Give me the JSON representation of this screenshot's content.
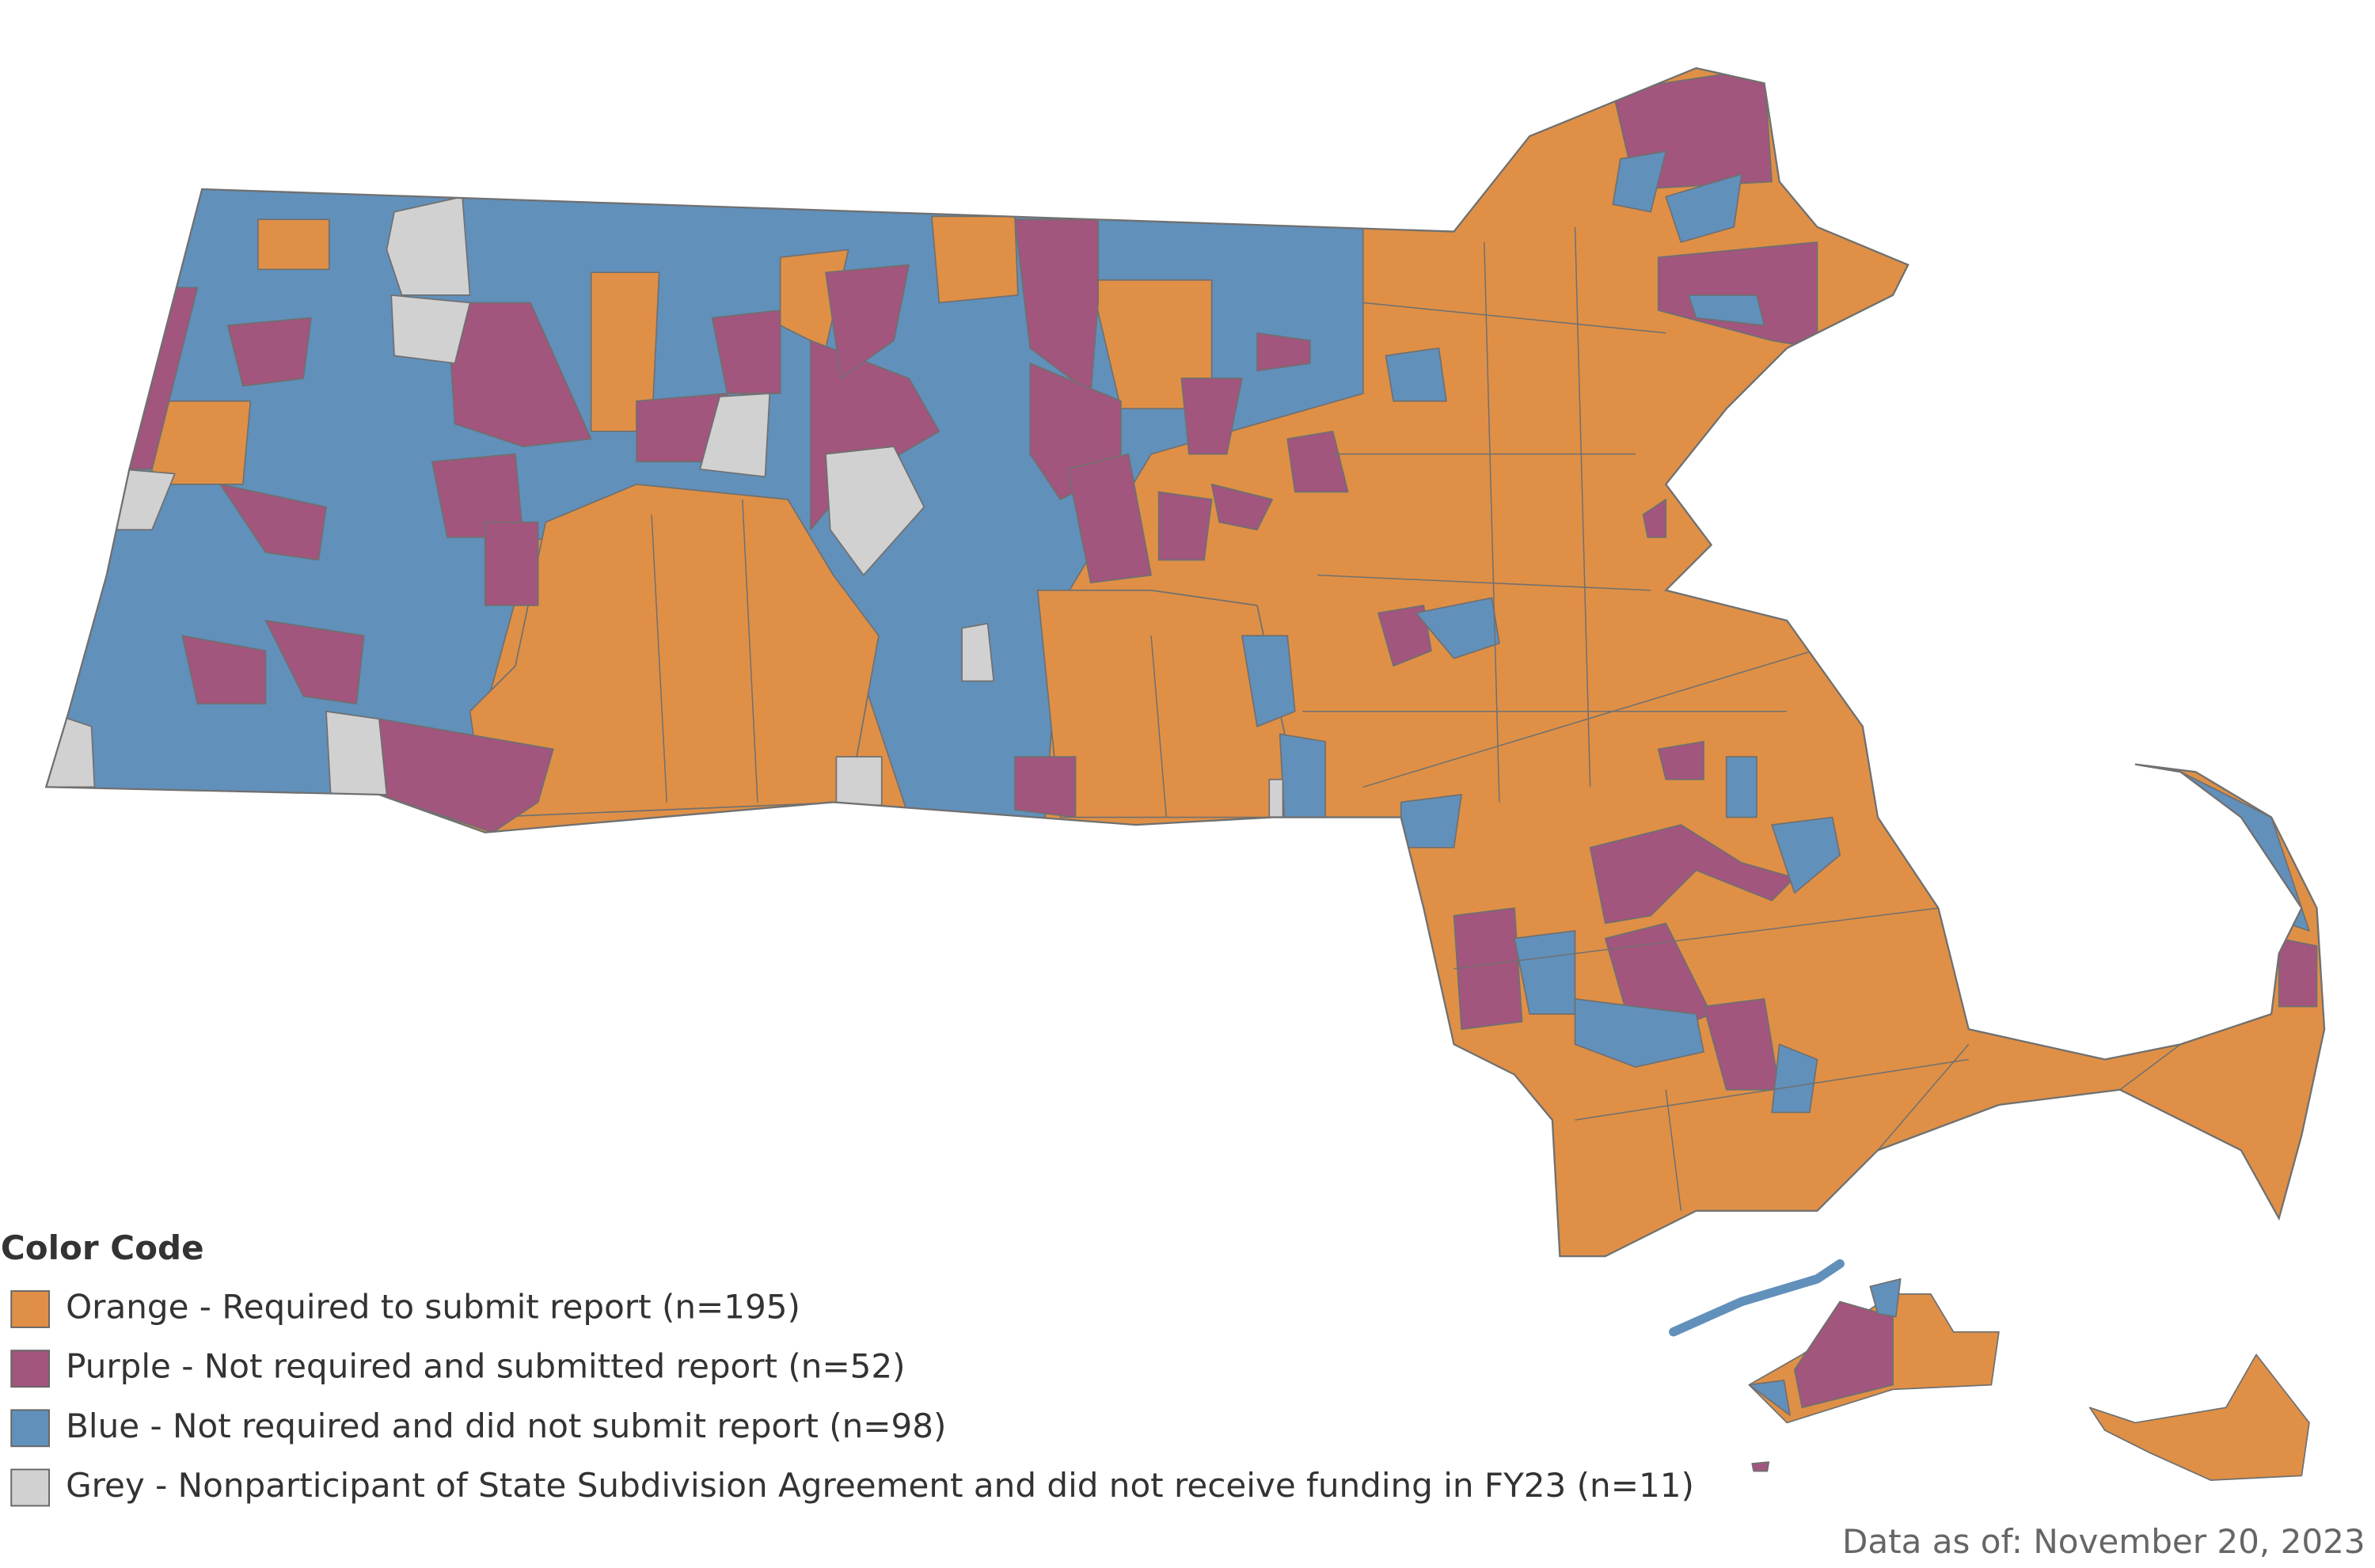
{
  "legend": {
    "title": "Color Code",
    "items": [
      {
        "label": "Orange - Required to submit report (n=195)",
        "color": "#df9046"
      },
      {
        "label": "Purple - Not required and submitted report (n=52)",
        "color": "#a2557d"
      },
      {
        "label": "Blue - Not required and did not submit report (n=98)",
        "color": "#6190bb"
      },
      {
        "label": "Grey - Nonparticipant of State Subdivision Agreement and did not receive funding in FY23 (n=11)",
        "color": "#d1d1d1"
      }
    ]
  },
  "note": "Data as of: November 20, 2023"
}
